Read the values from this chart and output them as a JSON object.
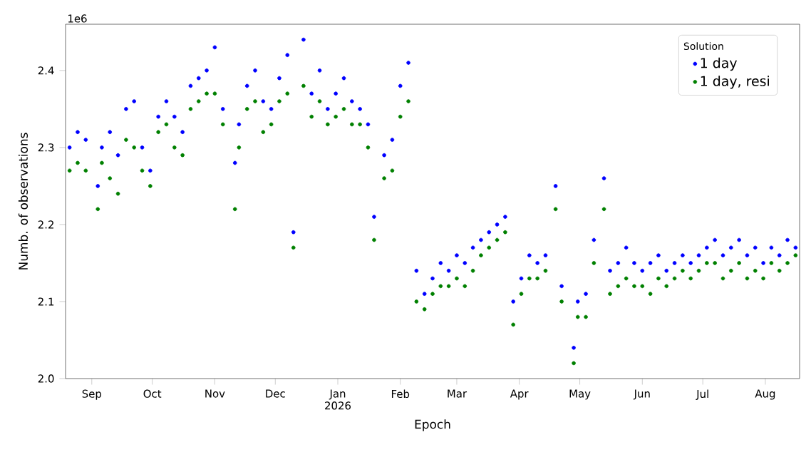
{
  "chart_data": {
    "type": "scatter",
    "xlabel": "Epoch",
    "ylabel": "Numb. of observations",
    "legend_title": "Solution",
    "legend": "top right",
    "marker": "circle",
    "annotations": [
      "1e6"
    ],
    "xlim": [
      "2025-08-19",
      "2026-08-18"
    ],
    "xticks": [
      {
        "value": "2025-09-01",
        "label": "Sep"
      },
      {
        "value": "2025-10-01",
        "label": "Oct"
      },
      {
        "value": "2025-11-01",
        "label": "Nov"
      },
      {
        "value": "2025-12-01",
        "label": "Dec"
      },
      {
        "value": "2026-01-01",
        "label": "Jan 2026"
      },
      {
        "value": "2026-02-01",
        "label": "Feb"
      },
      {
        "value": "2026-03-01",
        "label": "Mar"
      },
      {
        "value": "2026-04-01",
        "label": "Apr"
      },
      {
        "value": "2026-05-01",
        "label": "May"
      },
      {
        "value": "2026-06-01",
        "label": "Jun"
      },
      {
        "value": "2026-07-01",
        "label": "Jul"
      },
      {
        "value": "2026-08-01",
        "label": "Aug"
      }
    ],
    "ylim": [
      2.0,
      2.46
    ],
    "yticks": [
      {
        "value": 2.0,
        "label": "2.0"
      },
      {
        "value": 2.1,
        "label": "2.1"
      },
      {
        "value": 2.2,
        "label": "2.2"
      },
      {
        "value": 2.3,
        "label": "2.3"
      },
      {
        "value": 2.4,
        "label": "2.4"
      }
    ],
    "x": [
      "2025-08-21",
      "2025-08-25",
      "2025-08-29",
      "2025-09-04",
      "2025-09-06",
      "2025-09-10",
      "2025-09-14",
      "2025-09-18",
      "2025-09-22",
      "2025-09-26",
      "2025-09-30",
      "2025-10-04",
      "2025-10-08",
      "2025-10-12",
      "2025-10-16",
      "2025-10-20",
      "2025-10-24",
      "2025-10-28",
      "2025-11-01",
      "2025-11-05",
      "2025-11-11",
      "2025-11-13",
      "2025-11-17",
      "2025-11-21",
      "2025-11-25",
      "2025-11-29",
      "2025-12-03",
      "2025-12-07",
      "2025-12-10",
      "2025-12-15",
      "2025-12-19",
      "2025-12-23",
      "2025-12-27",
      "2025-12-31",
      "2026-01-04",
      "2026-01-08",
      "2026-01-12",
      "2026-01-16",
      "2026-01-19",
      "2026-01-24",
      "2026-01-28",
      "2026-02-01",
      "2026-02-05",
      "2026-02-09",
      "2026-02-13",
      "2026-02-17",
      "2026-02-21",
      "2026-02-25",
      "2026-03-01",
      "2026-03-05",
      "2026-03-09",
      "2026-03-13",
      "2026-03-17",
      "2026-03-21",
      "2026-03-25",
      "2026-03-29",
      "2026-04-02",
      "2026-04-06",
      "2026-04-10",
      "2026-04-14",
      "2026-04-19",
      "2026-04-22",
      "2026-04-28",
      "2026-04-30",
      "2026-05-04",
      "2026-05-08",
      "2026-05-13",
      "2026-05-16",
      "2026-05-20",
      "2026-05-24",
      "2026-05-28",
      "2026-06-01",
      "2026-06-05",
      "2026-06-09",
      "2026-06-13",
      "2026-06-17",
      "2026-06-21",
      "2026-06-25",
      "2026-06-29",
      "2026-07-03",
      "2026-07-07",
      "2026-07-11",
      "2026-07-15",
      "2026-07-19",
      "2026-07-23",
      "2026-07-27",
      "2026-07-31",
      "2026-08-04",
      "2026-08-08",
      "2026-08-12",
      "2026-08-16"
    ],
    "series": [
      {
        "name": "1 day",
        "color": "#0000ff",
        "values": [
          2.3,
          2.32,
          2.31,
          2.25,
          2.3,
          2.32,
          2.29,
          2.35,
          2.36,
          2.3,
          2.27,
          2.34,
          2.36,
          2.34,
          2.32,
          2.38,
          2.39,
          2.4,
          2.43,
          2.35,
          2.28,
          2.33,
          2.38,
          2.4,
          2.36,
          2.35,
          2.39,
          2.42,
          2.19,
          2.44,
          2.37,
          2.4,
          2.35,
          2.37,
          2.39,
          2.36,
          2.35,
          2.33,
          2.21,
          2.29,
          2.31,
          2.38,
          2.41,
          2.14,
          2.11,
          2.13,
          2.15,
          2.14,
          2.16,
          2.15,
          2.17,
          2.18,
          2.19,
          2.2,
          2.21,
          2.1,
          2.13,
          2.16,
          2.15,
          2.16,
          2.25,
          2.12,
          2.04,
          2.1,
          2.11,
          2.18,
          2.26,
          2.14,
          2.15,
          2.17,
          2.15,
          2.14,
          2.15,
          2.16,
          2.14,
          2.15,
          2.16,
          2.15,
          2.16,
          2.17,
          2.18,
          2.16,
          2.17,
          2.18,
          2.16,
          2.17,
          2.15,
          2.17,
          2.16,
          2.18,
          2.17
        ]
      },
      {
        "name": "1 day, resi",
        "color": "#008000",
        "values": [
          2.27,
          2.28,
          2.27,
          2.22,
          2.28,
          2.26,
          2.24,
          2.31,
          2.3,
          2.27,
          2.25,
          2.32,
          2.33,
          2.3,
          2.29,
          2.35,
          2.36,
          2.37,
          2.37,
          2.33,
          2.22,
          2.3,
          2.35,
          2.36,
          2.32,
          2.33,
          2.36,
          2.37,
          2.17,
          2.38,
          2.34,
          2.36,
          2.33,
          2.34,
          2.35,
          2.33,
          2.33,
          2.3,
          2.18,
          2.26,
          2.27,
          2.34,
          2.36,
          2.1,
          2.09,
          2.11,
          2.12,
          2.12,
          2.13,
          2.12,
          2.14,
          2.16,
          2.17,
          2.18,
          2.19,
          2.07,
          2.11,
          2.13,
          2.13,
          2.14,
          2.22,
          2.1,
          2.02,
          2.08,
          2.08,
          2.15,
          2.22,
          2.11,
          2.12,
          2.13,
          2.12,
          2.12,
          2.11,
          2.13,
          2.12,
          2.13,
          2.14,
          2.13,
          2.14,
          2.15,
          2.15,
          2.13,
          2.14,
          2.15,
          2.13,
          2.14,
          2.13,
          2.15,
          2.14,
          2.15,
          2.16
        ]
      }
    ]
  }
}
